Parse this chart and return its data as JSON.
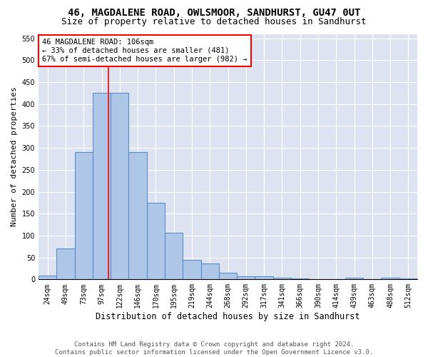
{
  "title": "46, MAGDALENE ROAD, OWLSMOOR, SANDHURST, GU47 0UT",
  "subtitle": "Size of property relative to detached houses in Sandhurst",
  "xlabel": "Distribution of detached houses by size in Sandhurst",
  "ylabel": "Number of detached properties",
  "bar_color": "#aec6e8",
  "bar_edge_color": "#5b8fc9",
  "background_color": "#dde3f0",
  "grid_color": "#ffffff",
  "fig_background": "#ffffff",
  "categories": [
    "24sqm",
    "49sqm",
    "73sqm",
    "97sqm",
    "122sqm",
    "146sqm",
    "170sqm",
    "195sqm",
    "219sqm",
    "244sqm",
    "268sqm",
    "292sqm",
    "317sqm",
    "341sqm",
    "366sqm",
    "390sqm",
    "414sqm",
    "439sqm",
    "463sqm",
    "488sqm",
    "512sqm"
  ],
  "values": [
    8,
    70,
    291,
    425,
    425,
    291,
    175,
    106,
    44,
    37,
    16,
    7,
    7,
    3,
    2,
    0,
    0,
    3,
    0,
    3,
    2
  ],
  "ylim": [
    0,
    560
  ],
  "yticks": [
    0,
    50,
    100,
    150,
    200,
    250,
    300,
    350,
    400,
    450,
    500,
    550
  ],
  "annotation_text": "46 MAGDALENE ROAD: 106sqm\n← 33% of detached houses are smaller (481)\n67% of semi-detached houses are larger (982) →",
  "footer_text": "Contains HM Land Registry data © Crown copyright and database right 2024.\nContains public sector information licensed under the Open Government Licence v3.0.",
  "title_fontsize": 10,
  "subtitle_fontsize": 9,
  "xlabel_fontsize": 8.5,
  "ylabel_fontsize": 8,
  "tick_fontsize": 7,
  "annotation_fontsize": 7.5,
  "footer_fontsize": 6.5
}
